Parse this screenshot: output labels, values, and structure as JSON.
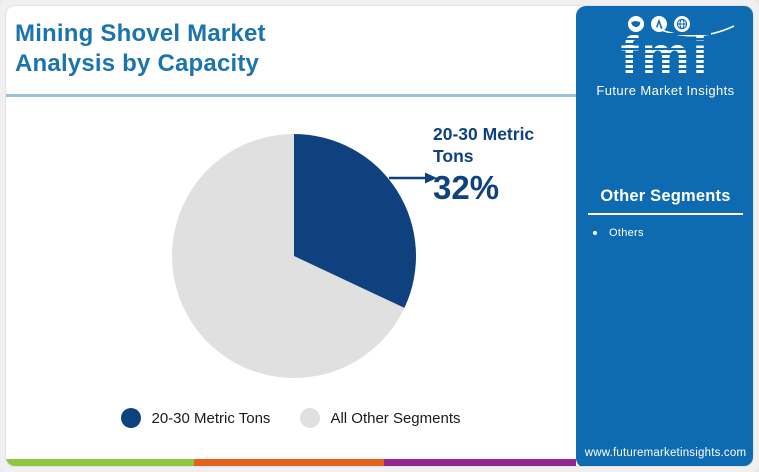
{
  "header": {
    "title_line1": "Mining Shovel Market",
    "title_line2": "Analysis by Capacity"
  },
  "sidebar": {
    "logo": {
      "text": "fmi",
      "subtext": "Future Market Insights",
      "icons": [
        "usa-map-icon",
        "compass-icon",
        "globe-icon"
      ]
    },
    "section": {
      "title": "Other Segments",
      "items": [
        "Others"
      ]
    },
    "website": "www.futuremarketinsights.com"
  },
  "colors": {
    "title_blue": "#1b74ad",
    "sidebar_blue": "#0e6ab1",
    "navy": "#10417f",
    "pie_gray": "#e0e0e0",
    "divider_blue": "#9cc0d4",
    "strip_green": "#8dc63f",
    "strip_orange": "#e4601f",
    "strip_purple": "#92278f"
  },
  "chart_data": {
    "type": "pie",
    "title": "Mining Shovel Market Analysis by Capacity",
    "categories": [
      "20-30 Metric Tons",
      "All Other Segments"
    ],
    "values": [
      32,
      68
    ],
    "colors": [
      "#10417f",
      "#e0e0e0"
    ],
    "start_angle_deg": 0,
    "direction": "clockwise",
    "legend_position": "bottom",
    "annotation": {
      "category": "20-30 Metric Tons",
      "text": "20-30 Metric Tons",
      "value_label": "32%"
    }
  }
}
